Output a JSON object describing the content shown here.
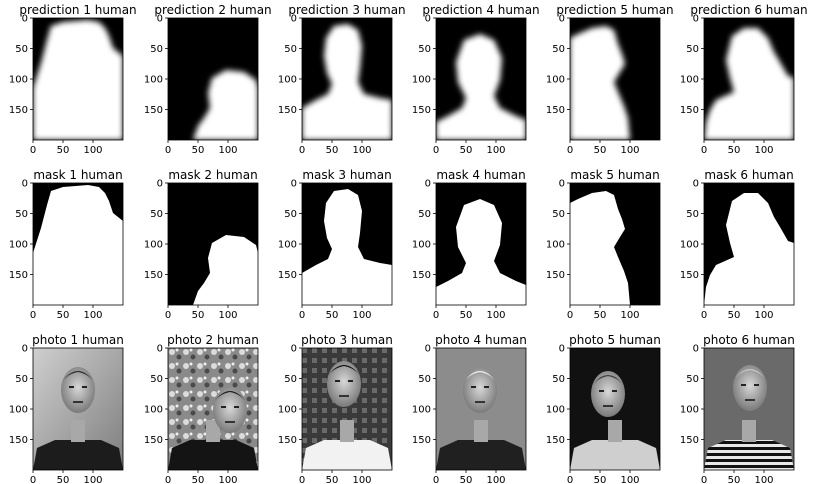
{
  "figure": {
    "x_ticks": [
      "0",
      "50",
      "100"
    ],
    "y_ticks": [
      "0",
      "50",
      "100",
      "150"
    ],
    "rows": [
      {
        "kind": "prediction",
        "titles": [
          "prediction 1 human",
          "prediction 2 human",
          "prediction 3 human",
          "prediction 4 human",
          "prediction 5 human",
          "prediction 6 human"
        ]
      },
      {
        "kind": "mask",
        "titles": [
          "mask 1 human",
          "mask 2 human",
          "mask 3 human",
          "mask 4 human",
          "mask 5 human",
          "mask 6 human"
        ]
      },
      {
        "kind": "photo",
        "titles": [
          "photo 1 human",
          "photo 2 human",
          "photo 3 human",
          "photo 4 human",
          "photo 5 human",
          "photo 6 human"
        ]
      }
    ]
  },
  "colors": {
    "mask_bg": "#000000",
    "mask_fg": "#ffffff",
    "axis": "#000000"
  }
}
